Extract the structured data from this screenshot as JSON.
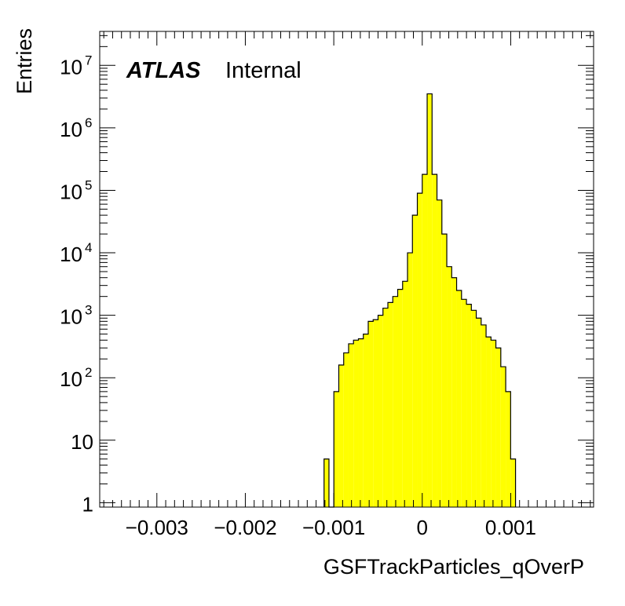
{
  "chart_data": {
    "type": "histogram",
    "xlabel": "GSFTrackParticles_qOverP",
    "ylabel": "Entries",
    "xlim": [
      -0.003646,
      0.001937
    ],
    "ylim": [
      0.85,
      35000000
    ],
    "yscale": "log",
    "legend": "",
    "labels": {
      "atlas": "ATLAS",
      "status": "Internal"
    },
    "grid": false,
    "bar_color": "#ffff00",
    "edge_color": "#000000",
    "x_ticks": [
      {
        "value": -0.003,
        "label": "−0.003"
      },
      {
        "value": -0.002,
        "label": "−0.002"
      },
      {
        "value": -0.001,
        "label": "−0.001"
      },
      {
        "value": 0,
        "label": "0"
      },
      {
        "value": 0.001,
        "label": "0.001"
      }
    ],
    "y_ticks": [
      {
        "value": 1,
        "base": "1",
        "exp": ""
      },
      {
        "value": 10,
        "base": "10",
        "exp": ""
      },
      {
        "value": 100,
        "base": "10",
        "exp": "2"
      },
      {
        "value": 1000,
        "base": "10",
        "exp": "3"
      },
      {
        "value": 10000,
        "base": "10",
        "exp": "4"
      },
      {
        "value": 100000,
        "base": "10",
        "exp": "5"
      },
      {
        "value": 1000000,
        "base": "10",
        "exp": "6"
      },
      {
        "value": 10000000,
        "base": "10",
        "exp": "7"
      }
    ],
    "bins": {
      "start": -0.00111,
      "width": 5.55e-05,
      "values": [
        5,
        0,
        60,
        160,
        250,
        350,
        400,
        420,
        500,
        800,
        850,
        1000,
        1300,
        1600,
        2000,
        2600,
        3500,
        10000,
        40000,
        90000,
        180000,
        3500000,
        180000,
        70000,
        20000,
        6000,
        4000,
        2500,
        1800,
        1500,
        1200,
        900,
        700,
        450,
        400,
        300,
        150,
        60,
        5
      ]
    }
  }
}
